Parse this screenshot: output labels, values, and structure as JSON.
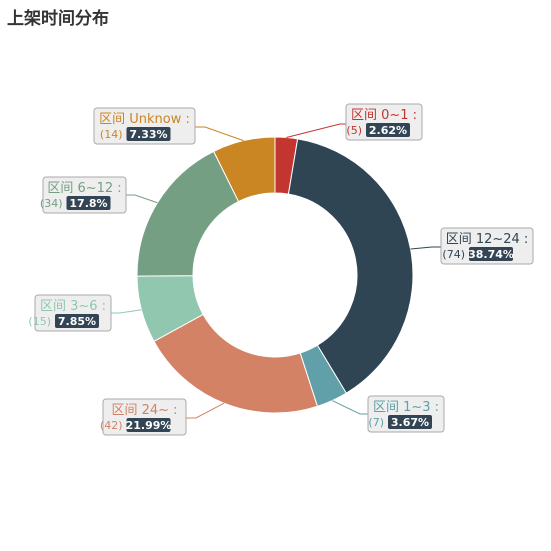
{
  "chart_data": {
    "type": "pie",
    "title": "上架时间分布",
    "slices": [
      {
        "name": "区间 0~1 :",
        "count": 5,
        "percent": "2.62%",
        "value": 2.62,
        "color": "#c23531"
      },
      {
        "name": "区间 12~24 :",
        "count": 74,
        "percent": "38.74%",
        "value": 38.74,
        "color": "#2f4554"
      },
      {
        "name": "区间 1~3 :",
        "count": 7,
        "percent": "3.67%",
        "value": 3.67,
        "color": "#61a0a8"
      },
      {
        "name": "区间 24~ :",
        "count": 42,
        "percent": "21.99%",
        "value": 21.99,
        "color": "#d48265"
      },
      {
        "name": "区间 3~6 :",
        "count": 15,
        "percent": "7.85%",
        "value": 7.85,
        "color": "#91c7ae"
      },
      {
        "name": "区间 6~12 :",
        "count": 34,
        "percent": "17.8%",
        "value": 17.8,
        "color": "#749f83"
      },
      {
        "name": "区间 Unknow :",
        "count": 14,
        "percent": "7.33%",
        "value": 7.33,
        "color": "#ca8622"
      }
    ],
    "badge_color": "#334455"
  }
}
